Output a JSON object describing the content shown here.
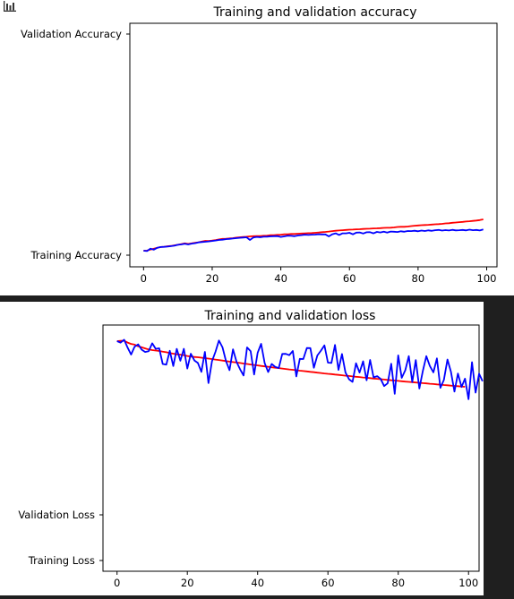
{
  "output_icon": "bar-chart-icon",
  "chart_data": [
    {
      "type": "line",
      "title": "Training and validation accuracy",
      "xticks": [
        "0",
        "20",
        "40",
        "60",
        "80",
        "100"
      ],
      "yticks": [
        "Training Accuracy",
        "Validation Accuracy"
      ],
      "xlim": [
        -4,
        103
      ],
      "x_start": 0,
      "series": [
        {
          "color": "#ff0000",
          "values": [
            0,
            0.1,
            0.9,
            1.6,
            2.3,
            2.9,
            3.1,
            3.5,
            3.7,
            4.2,
            4.6,
            5.2,
            5.7,
            5.3,
            5.7,
            6.2,
            6.6,
            7.2,
            7.7,
            7.6,
            7.9,
            8.3,
            8.8,
            9.2,
            9.4,
            9.6,
            9.8,
            10.2,
            10.5,
            10.7,
            10.9,
            11.2,
            11.3,
            11.4,
            11.5,
            11.7,
            11.8,
            12.1,
            12.2,
            12.4,
            12.5,
            12.8,
            12.9,
            13.1,
            13.1,
            13.3,
            13.4,
            13.6,
            13.7,
            13.8,
            14.0,
            14.2,
            14.5,
            14.7,
            15.0,
            15.3,
            15.6,
            15.8,
            16.0,
            16.2,
            16.4,
            16.5,
            16.7,
            16.8,
            17.0,
            17.1,
            17.2,
            17.4,
            17.5,
            17.6,
            17.8,
            17.9,
            18.0,
            18.2,
            18.5,
            18.7,
            18.7,
            18.9,
            19.2,
            19.5,
            19.7,
            19.9,
            20.1,
            20.2,
            20.4,
            20.6,
            20.8,
            21.0,
            21.3,
            21.5,
            21.8,
            22.0,
            22.3,
            22.5,
            22.8,
            23.0,
            23.3,
            23.6,
            23.9,
            24.5
          ]
        },
        {
          "color": "#0000ff",
          "values": [
            0,
            -0.3,
            1.6,
            0.8,
            2.3,
            2.9,
            3.0,
            3.2,
            3.6,
            3.9,
            4.6,
            4.9,
            5.4,
            4.9,
            5.5,
            5.9,
            6.5,
            6.8,
            7.0,
            7.3,
            7.6,
            8.0,
            8.4,
            8.6,
            9.0,
            9.2,
            9.5,
            9.8,
            10.1,
            10.3,
            10.5,
            8.4,
            10.3,
            10.8,
            10.5,
            10.9,
            11.0,
            11.2,
            11.3,
            11.4,
            10.8,
            11.2,
            11.7,
            11.6,
            11.3,
            11.9,
            12.2,
            12.5,
            12.3,
            12.5,
            12.6,
            12.9,
            12.7,
            12.7,
            11.2,
            12.9,
            13.6,
            12.3,
            13.6,
            13.6,
            14.0,
            12.8,
            14.1,
            14.3,
            13.4,
            14.4,
            14.5,
            13.6,
            14.7,
            14.3,
            14.8,
            14.2,
            15.0,
            14.8,
            14.6,
            15.2,
            14.8,
            15.4,
            15.3,
            15.6,
            15.2,
            15.7,
            15.4,
            15.9,
            15.5,
            16.0,
            16.2,
            15.7,
            16.1,
            15.8,
            16.3,
            15.9,
            16.0,
            16.2,
            15.9,
            16.4,
            16.0,
            16.2,
            15.8,
            16.6
          ]
        }
      ]
    },
    {
      "type": "line",
      "title": "Training and validation loss",
      "xticks": [
        "0",
        "20",
        "40",
        "60",
        "80",
        "100"
      ],
      "yticks": [
        "Training Loss",
        "Validation Loss"
      ],
      "xlim": [
        -4,
        103
      ],
      "x_start": 0,
      "series": [
        {
          "color": "#ff0000",
          "values": [
            0,
            -0.4,
            -0.6,
            1.8,
            3.6,
            4.5,
            6.7,
            8.0,
            9.4,
            10.7,
            11.6,
            12.1,
            12.7,
            13.5,
            14.3,
            15.3,
            16.2,
            17.0,
            17.5,
            18.2,
            19.2,
            19.9,
            20.5,
            20.8,
            21.4,
            22.0,
            22.6,
            23.1,
            23.8,
            24.4,
            25.1,
            25.8,
            26.5,
            27.1,
            27.6,
            28.2,
            28.9,
            29.5,
            30.2,
            30.7,
            31.3,
            32.0,
            32.6,
            33.1,
            33.7,
            34.3,
            34.8,
            35.4,
            36.0,
            36.5,
            37.0,
            37.6,
            38.1,
            38.6,
            39.1,
            39.6,
            40.1,
            40.7,
            41.2,
            41.7,
            42.2,
            42.6,
            43.1,
            43.6,
            44.1,
            44.6,
            45.0,
            45.5,
            46.0,
            46.4,
            46.9,
            47.3,
            47.8,
            48.3,
            48.7,
            49.1,
            49.6,
            50.0,
            50.5,
            50.9,
            51.3,
            51.8,
            52.2,
            52.6,
            53.0,
            53.4,
            53.8,
            54.2,
            54.6,
            55.0,
            55.4,
            55.8,
            56.2,
            56.6,
            57.0,
            57.4,
            57.8,
            58.2,
            58.6,
            59.0
          ]
        },
        {
          "color": "#0000ff",
          "values": [
            0,
            2.0,
            -1.9,
            8.3,
            17.3,
            7.2,
            4.2,
            11.0,
            14.0,
            13.0,
            2.8,
            10.0,
            9.2,
            29.5,
            30.4,
            12.5,
            32.1,
            10.0,
            25.3,
            10.0,
            35.4,
            16.3,
            25.0,
            28.2,
            39.7,
            13.9,
            54.1,
            26.1,
            13.9,
            -0.8,
            8.1,
            25.9,
            37.4,
            10.5,
            26.8,
            36.3,
            44.4,
            8.1,
            13.0,
            43.0,
            15.1,
            3.5,
            28.6,
            39.9,
            29.5,
            33.2,
            34.8,
            16.5,
            16.4,
            18.1,
            12.7,
            45.5,
            22.9,
            23.1,
            8.9,
            9.0,
            34.3,
            18.5,
            12.2,
            5.4,
            27.8,
            28.2,
            5.0,
            37.1,
            16.6,
            40.6,
            49.2,
            52.6,
            28.6,
            40.6,
            26.0,
            50.5,
            24.3,
            46.8,
            45.2,
            48.8,
            58.0,
            54.5,
            29.3,
            68.0,
            18.4,
            47.4,
            37.6,
            19.4,
            52.8,
            24.4,
            61.2,
            38.5,
            19.4,
            32.0,
            40.3,
            22.3,
            60.4,
            50.0,
            23.7,
            39.7,
            65.1,
            41.8,
            59.2,
            48.4,
            75.0,
            27.2,
            66.5,
            42.1,
            51.8
          ]
        }
      ]
    }
  ]
}
